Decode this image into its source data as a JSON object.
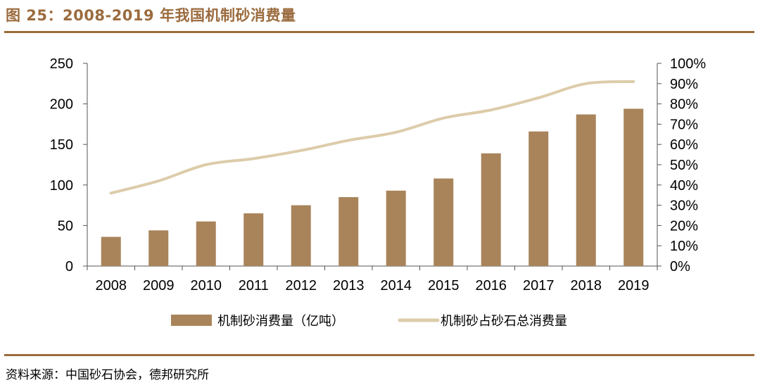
{
  "header": {
    "title": "图 25：2008-2019 年我国机制砂消费量"
  },
  "footer": {
    "source": "资料来源：中国砂石协会，德邦研究所"
  },
  "colors": {
    "bar": "#a9845a",
    "line": "#ddccaa",
    "accent": "#9b6b3e",
    "axis": "#555555"
  },
  "chart_data": {
    "type": "bar",
    "categories": [
      "2008",
      "2009",
      "2010",
      "2011",
      "2012",
      "2013",
      "2014",
      "2015",
      "2016",
      "2017",
      "2018",
      "2019"
    ],
    "series": [
      {
        "name": "机制砂消费量（亿吨）",
        "type": "bar",
        "axis": "left",
        "values": [
          36,
          44,
          55,
          65,
          75,
          85,
          93,
          108,
          139,
          166,
          187,
          194
        ]
      },
      {
        "name": "机制砂占砂石总消费量",
        "type": "line",
        "axis": "right",
        "values": [
          36,
          42,
          50,
          53,
          57,
          62,
          66,
          73,
          77,
          83,
          90,
          91
        ]
      }
    ],
    "ylim": [
      0,
      250
    ],
    "y_ticks": [
      "0",
      "50",
      "100",
      "150",
      "200",
      "250"
    ],
    "y2lim": [
      0,
      100
    ],
    "y2_ticks": [
      "0%",
      "10%",
      "20%",
      "30%",
      "40%",
      "50%",
      "60%",
      "70%",
      "80%",
      "90%",
      "100%"
    ],
    "legend_position": "bottom",
    "grid": false
  }
}
